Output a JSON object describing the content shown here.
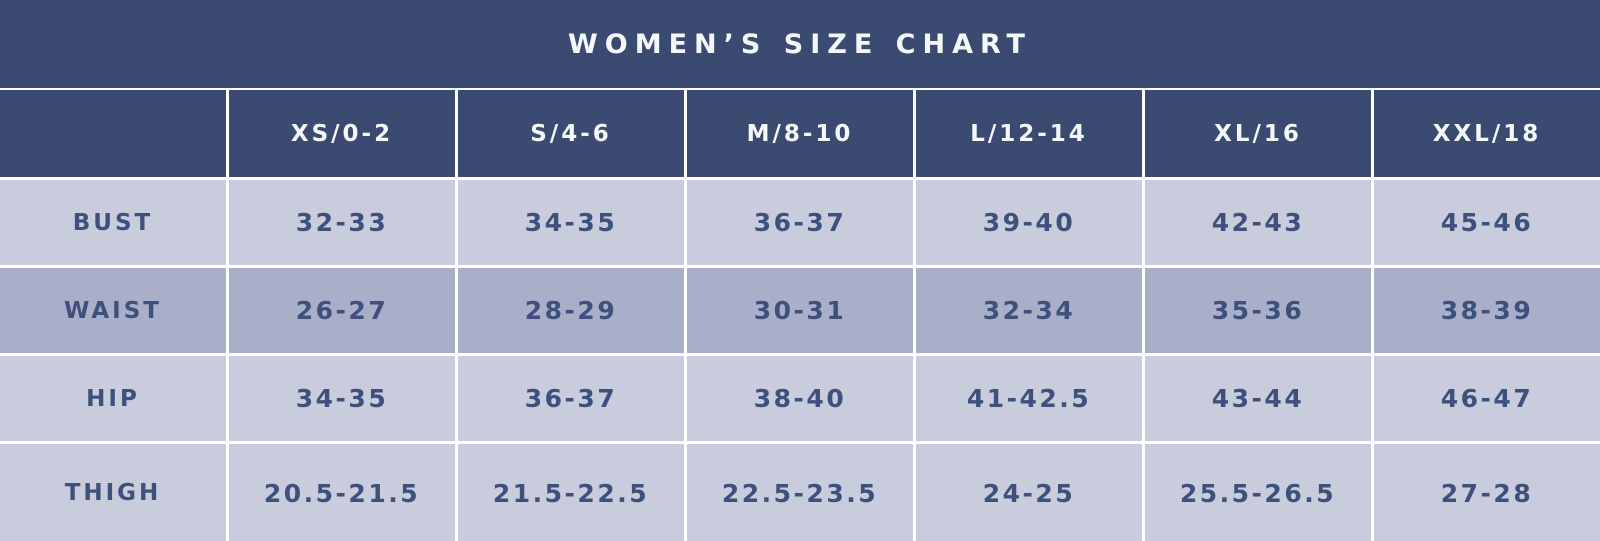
{
  "chart_data": {
    "type": "table",
    "title": "WOMEN’S SIZE CHART",
    "columns": [
      "XS/0-2",
      "S/4-6",
      "M/8-10",
      "L/12-14",
      "XL/16",
      "XXL/18"
    ],
    "rows": [
      {
        "label": "BUST",
        "values": [
          "32-33",
          "34-35",
          "36-37",
          "39-40",
          "42-43",
          "45-46"
        ]
      },
      {
        "label": "WAIST",
        "values": [
          "26-27",
          "28-29",
          "30-31",
          "32-34",
          "35-36",
          "38-39"
        ]
      },
      {
        "label": "HIP",
        "values": [
          "34-35",
          "36-37",
          "38-40",
          "41-42.5",
          "43-44",
          "46-47"
        ]
      },
      {
        "label": "THIGH",
        "values": [
          "20.5-21.5",
          "21.5-22.5",
          "22.5-23.5",
          "24-25",
          "25.5-26.5",
          "27-28"
        ]
      }
    ]
  },
  "colors": {
    "header_navy": "#3a4a70",
    "row_light": "#c9ccdc",
    "row_medium": "#a9aec9",
    "text_navy": "#3d517c",
    "separator_white": "#ffffff",
    "header_text": "#f6f7f9"
  }
}
